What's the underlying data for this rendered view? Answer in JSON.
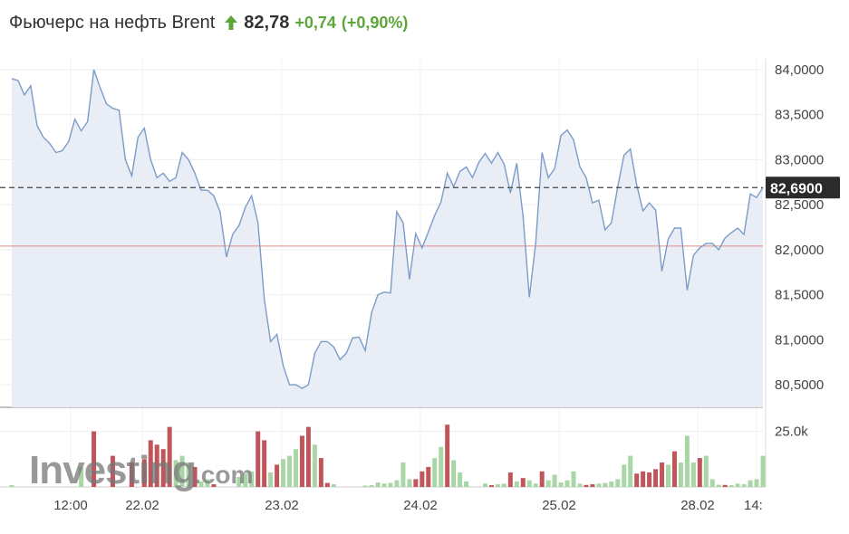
{
  "header": {
    "title": "Фьючерс на нефть Brent",
    "trend_icon": "arrow-up-icon",
    "price": "82,78",
    "change": "+0,74",
    "change_pct": "(+0,90%)"
  },
  "watermark": {
    "brand": "Investing",
    "suffix": ".com"
  },
  "colors": {
    "line": "#7c9cc8",
    "area": "#e9edf6",
    "up": "#a9d6a6",
    "down": "#c0555b",
    "accent_green": "#5ca63a",
    "ref_line": "#e38a8a"
  },
  "chart_data": {
    "type": "line",
    "price_axis": {
      "ticks": [
        "84,0000",
        "83,5000",
        "83,0000",
        "82,5000",
        "82,0000",
        "81,5000",
        "81,0000",
        "80,5000"
      ],
      "tick_values": [
        84.0,
        83.5,
        83.0,
        82.5,
        82.0,
        81.5,
        81.0,
        80.5
      ],
      "range": [
        80.25,
        84.12
      ]
    },
    "volume_axis": {
      "ticks": [
        "25.0k"
      ],
      "tick_values": [
        25000
      ],
      "range": [
        0,
        35000
      ]
    },
    "x_labels": [
      "12:00",
      "22.02",
      "23.02",
      "24.02",
      "25.02",
      "28.02",
      "14:"
    ],
    "current_value_label": "82,6900",
    "current_value": 82.69,
    "reference_value": 82.04,
    "grid": true,
    "price_series": [
      83.9,
      83.88,
      83.72,
      83.82,
      83.38,
      83.25,
      83.18,
      83.08,
      83.1,
      83.2,
      83.45,
      83.32,
      83.42,
      84.0,
      83.8,
      83.62,
      83.57,
      83.55,
      83.0,
      82.82,
      83.25,
      83.35,
      83.0,
      82.8,
      82.85,
      82.76,
      82.8,
      83.08,
      83.0,
      82.85,
      82.66,
      82.66,
      82.6,
      82.42,
      81.92,
      82.17,
      82.27,
      82.47,
      82.6,
      82.3,
      81.45,
      80.98,
      81.06,
      80.71,
      80.5,
      80.5,
      80.46,
      80.5,
      80.85,
      80.98,
      80.98,
      80.92,
      80.78,
      80.85,
      81.02,
      81.03,
      80.88,
      81.3,
      81.5,
      81.53,
      81.52,
      82.42,
      82.3,
      81.67,
      82.18,
      82.02,
      82.2,
      82.38,
      82.53,
      82.85,
      82.7,
      82.87,
      82.92,
      82.8,
      82.97,
      83.07,
      82.96,
      83.08,
      82.95,
      82.63,
      82.96,
      82.37,
      81.47,
      82.07,
      83.08,
      82.8,
      82.9,
      83.27,
      83.33,
      83.22,
      82.92,
      82.8,
      82.52,
      82.55,
      82.22,
      82.3,
      82.7,
      83.05,
      83.12,
      82.72,
      82.43,
      82.52,
      82.44,
      81.76,
      82.12,
      82.24,
      82.24,
      81.55,
      81.94,
      82.02,
      82.07,
      82.07,
      82.0,
      82.13,
      82.19,
      82.24,
      82.17,
      82.62,
      82.58,
      82.69
    ],
    "volume_bars": [
      {
        "i": 0,
        "v": 800,
        "d": "up"
      },
      {
        "i": 11,
        "v": 9000,
        "d": "up"
      },
      {
        "i": 13,
        "v": 25000,
        "d": "down"
      },
      {
        "i": 16,
        "v": 14000,
        "d": "down"
      },
      {
        "i": 19,
        "v": 11000,
        "d": "down"
      },
      {
        "i": 21,
        "v": 12500,
        "d": "down"
      },
      {
        "i": 22,
        "v": 21000,
        "d": "down"
      },
      {
        "i": 23,
        "v": 19000,
        "d": "down"
      },
      {
        "i": 24,
        "v": 17000,
        "d": "down"
      },
      {
        "i": 25,
        "v": 27000,
        "d": "down"
      },
      {
        "i": 26,
        "v": 12000,
        "d": "up"
      },
      {
        "i": 27,
        "v": 14000,
        "d": "up"
      },
      {
        "i": 28,
        "v": 11000,
        "d": "up"
      },
      {
        "i": 29,
        "v": 9000,
        "d": "down"
      },
      {
        "i": 30,
        "v": 2500,
        "d": "up"
      },
      {
        "i": 31,
        "v": 3500,
        "d": "up"
      },
      {
        "i": 32,
        "v": 1200,
        "d": "down"
      },
      {
        "i": 36,
        "v": 4500,
        "d": "up"
      },
      {
        "i": 37,
        "v": 6000,
        "d": "up"
      },
      {
        "i": 38,
        "v": 7000,
        "d": "up"
      },
      {
        "i": 39,
        "v": 25000,
        "d": "down"
      },
      {
        "i": 40,
        "v": 21000,
        "d": "down"
      },
      {
        "i": 41,
        "v": 6500,
        "d": "up"
      },
      {
        "i": 42,
        "v": 10000,
        "d": "down"
      },
      {
        "i": 43,
        "v": 12500,
        "d": "up"
      },
      {
        "i": 44,
        "v": 14000,
        "d": "up"
      },
      {
        "i": 45,
        "v": 17000,
        "d": "up"
      },
      {
        "i": 46,
        "v": 23000,
        "d": "down"
      },
      {
        "i": 47,
        "v": 27000,
        "d": "down"
      },
      {
        "i": 48,
        "v": 19000,
        "d": "up"
      },
      {
        "i": 49,
        "v": 13000,
        "d": "down"
      },
      {
        "i": 50,
        "v": 1800,
        "d": "down"
      },
      {
        "i": 51,
        "v": 1200,
        "d": "up"
      },
      {
        "i": 56,
        "v": 600,
        "d": "up"
      },
      {
        "i": 57,
        "v": 800,
        "d": "up"
      },
      {
        "i": 58,
        "v": 2000,
        "d": "up"
      },
      {
        "i": 59,
        "v": 1500,
        "d": "up"
      },
      {
        "i": 60,
        "v": 1800,
        "d": "up"
      },
      {
        "i": 61,
        "v": 3000,
        "d": "up"
      },
      {
        "i": 62,
        "v": 11000,
        "d": "up"
      },
      {
        "i": 63,
        "v": 3500,
        "d": "up"
      },
      {
        "i": 64,
        "v": 3500,
        "d": "down"
      },
      {
        "i": 65,
        "v": 7000,
        "d": "down"
      },
      {
        "i": 66,
        "v": 9000,
        "d": "down"
      },
      {
        "i": 67,
        "v": 13000,
        "d": "up"
      },
      {
        "i": 68,
        "v": 18000,
        "d": "up"
      },
      {
        "i": 69,
        "v": 28000,
        "d": "down"
      },
      {
        "i": 70,
        "v": 12000,
        "d": "up"
      },
      {
        "i": 71,
        "v": 6500,
        "d": "up"
      },
      {
        "i": 72,
        "v": 2500,
        "d": "up"
      },
      {
        "i": 75,
        "v": 1500,
        "d": "up"
      },
      {
        "i": 76,
        "v": 800,
        "d": "down"
      },
      {
        "i": 77,
        "v": 1200,
        "d": "up"
      },
      {
        "i": 78,
        "v": 1500,
        "d": "up"
      },
      {
        "i": 79,
        "v": 6500,
        "d": "down"
      },
      {
        "i": 80,
        "v": 2500,
        "d": "up"
      },
      {
        "i": 81,
        "v": 4000,
        "d": "down"
      },
      {
        "i": 82,
        "v": 3000,
        "d": "up"
      },
      {
        "i": 83,
        "v": 1500,
        "d": "up"
      },
      {
        "i": 84,
        "v": 7000,
        "d": "down"
      },
      {
        "i": 85,
        "v": 3000,
        "d": "up"
      },
      {
        "i": 86,
        "v": 5500,
        "d": "up"
      },
      {
        "i": 87,
        "v": 2000,
        "d": "up"
      },
      {
        "i": 88,
        "v": 3000,
        "d": "up"
      },
      {
        "i": 89,
        "v": 7000,
        "d": "up"
      },
      {
        "i": 90,
        "v": 1500,
        "d": "up"
      },
      {
        "i": 91,
        "v": 900,
        "d": "down"
      },
      {
        "i": 92,
        "v": 1200,
        "d": "down"
      },
      {
        "i": 93,
        "v": 1500,
        "d": "up"
      },
      {
        "i": 94,
        "v": 1800,
        "d": "up"
      },
      {
        "i": 95,
        "v": 2500,
        "d": "up"
      },
      {
        "i": 96,
        "v": 3500,
        "d": "up"
      },
      {
        "i": 97,
        "v": 10000,
        "d": "up"
      },
      {
        "i": 98,
        "v": 14000,
        "d": "up"
      },
      {
        "i": 99,
        "v": 6000,
        "d": "down"
      },
      {
        "i": 100,
        "v": 7000,
        "d": "down"
      },
      {
        "i": 101,
        "v": 6500,
        "d": "down"
      },
      {
        "i": 102,
        "v": 8000,
        "d": "down"
      },
      {
        "i": 103,
        "v": 11000,
        "d": "down"
      },
      {
        "i": 104,
        "v": 10000,
        "d": "up"
      },
      {
        "i": 105,
        "v": 16000,
        "d": "down"
      },
      {
        "i": 106,
        "v": 11000,
        "d": "up"
      },
      {
        "i": 107,
        "v": 23000,
        "d": "up"
      },
      {
        "i": 108,
        "v": 11000,
        "d": "up"
      },
      {
        "i": 109,
        "v": 13000,
        "d": "down"
      },
      {
        "i": 110,
        "v": 14000,
        "d": "up"
      },
      {
        "i": 111,
        "v": 3500,
        "d": "up"
      },
      {
        "i": 112,
        "v": 1000,
        "d": "up"
      },
      {
        "i": 113,
        "v": 900,
        "d": "down"
      },
      {
        "i": 114,
        "v": 800,
        "d": "up"
      },
      {
        "i": 115,
        "v": 1500,
        "d": "up"
      },
      {
        "i": 116,
        "v": 1200,
        "d": "up"
      },
      {
        "i": 117,
        "v": 3000,
        "d": "up"
      },
      {
        "i": 118,
        "v": 3500,
        "d": "up"
      },
      {
        "i": 119,
        "v": 14000,
        "d": "up"
      }
    ]
  }
}
